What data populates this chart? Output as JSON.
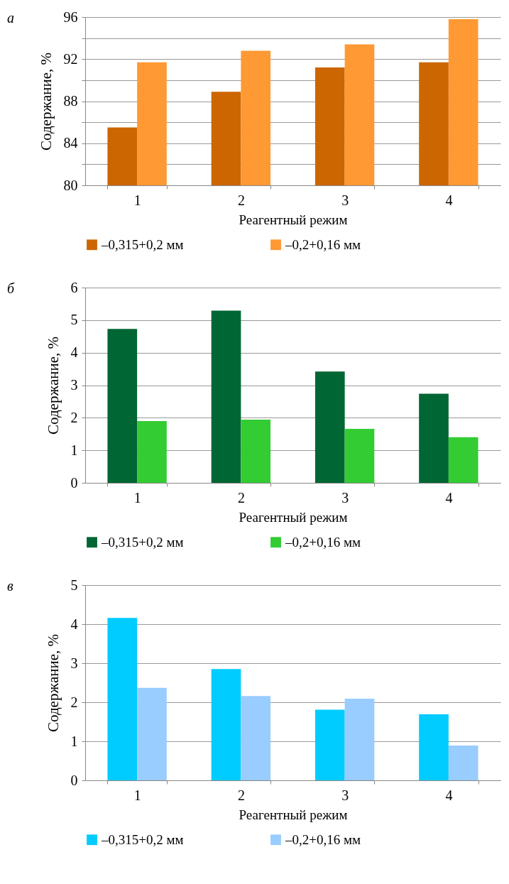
{
  "chart_data": [
    {
      "type": "bar",
      "title": "а",
      "categories": [
        "1",
        "2",
        "3",
        "4"
      ],
      "xlabel": "Реагентный режим",
      "ylabel": "Содержание, %",
      "ylim": [
        80,
        96
      ],
      "yticks": [
        80,
        {
          "value": 82,
          "label": null
        },
        84,
        {
          "value": 86,
          "label": null
        },
        88,
        {
          "value": 90,
          "label": null
        },
        92,
        {
          "value": 94,
          "label": null
        },
        96
      ],
      "grid": "y",
      "legend": "bottom",
      "series": [
        {
          "name": "–0,315+0,2 мм",
          "color": "#cc6600",
          "values": [
            85.5,
            88.9,
            91.2,
            91.7
          ]
        },
        {
          "name": "–0,2+0,16 мм",
          "color": "#ff9933",
          "values": [
            91.7,
            92.8,
            93.4,
            95.8
          ]
        }
      ]
    },
    {
      "type": "bar",
      "title": "б",
      "categories": [
        "1",
        "2",
        "3",
        "4"
      ],
      "xlabel": "Реагентный режим",
      "ylabel": "Содержание, %",
      "ylim": [
        0,
        6
      ],
      "yticks": [
        0,
        1,
        2,
        3,
        4,
        5,
        6
      ],
      "grid": "y",
      "legend": "bottom",
      "series": [
        {
          "name": "–0,315+0,2 мм",
          "color": "#006633",
          "values": [
            4.73,
            5.29,
            3.42,
            2.74
          ]
        },
        {
          "name": "–0,2+0,16 мм",
          "color": "#33cc33",
          "values": [
            1.9,
            1.94,
            1.66,
            1.4
          ]
        }
      ]
    },
    {
      "type": "bar",
      "title": "в",
      "categories": [
        "1",
        "2",
        "3",
        "4"
      ],
      "xlabel": "Реагентный режим",
      "ylabel": "Содержание, %",
      "ylim": [
        0,
        5
      ],
      "yticks": [
        0,
        1,
        2,
        3,
        4,
        5
      ],
      "grid": "y",
      "legend": "bottom",
      "series": [
        {
          "name": "–0,315+0,2 мм",
          "color": "#00ccff",
          "values": [
            4.16,
            2.85,
            1.81,
            1.69
          ]
        },
        {
          "name": "–0,2+0,16 мм",
          "color": "#99ccff",
          "values": [
            2.37,
            2.16,
            2.09,
            0.89
          ]
        }
      ]
    }
  ]
}
